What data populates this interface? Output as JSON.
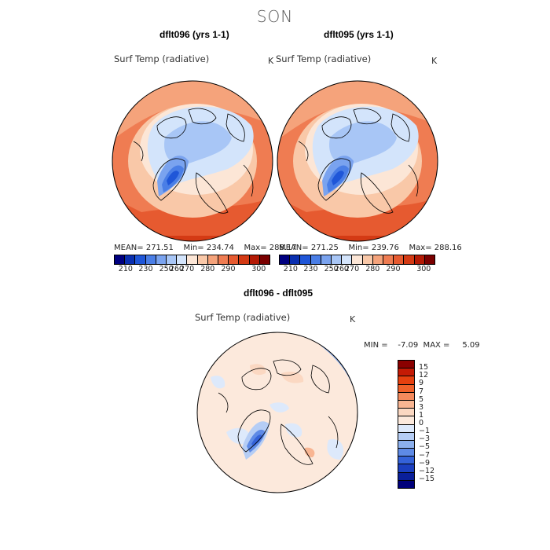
{
  "page_title": "SON",
  "panels": [
    {
      "title": "dflt096 (yrs 1-1)",
      "variable": "Surf Temp (radiative)",
      "unit": "K",
      "stats": "MEAN= 271.51    Min= 234.74    Max= 288.17",
      "colorbar_ticks": [
        "210",
        "230",
        "250",
        "260",
        "270",
        "280",
        "290",
        "300"
      ]
    },
    {
      "title": "dflt095 (yrs 1-1)",
      "variable": "Surf Temp (radiative)",
      "unit": "K",
      "stats": "MEAN= 271.25    Min= 239.76    Max= 288.16",
      "colorbar_ticks": [
        "210",
        "230",
        "250",
        "260",
        "270",
        "280",
        "290",
        "300"
      ]
    }
  ],
  "diff_panel": {
    "title": "dflt096 - dflt095",
    "variable": "Surf Temp (radiative)",
    "unit": "K",
    "stats": "MIN =    -7.09  MAX =     5.09",
    "colorbar_ticks": [
      "15",
      "12",
      "9",
      "7",
      "5",
      "3",
      "1",
      "0",
      "−1",
      "−3",
      "−5",
      "−7",
      "−9",
      "−12",
      "−15"
    ]
  },
  "colors": {
    "abs_scale": [
      "#000080",
      "#0a2fb0",
      "#1f56d8",
      "#4a7ee6",
      "#7aa3ef",
      "#a8c6f6",
      "#d3e4fb",
      "#fce6d6",
      "#f9c8a8",
      "#f5a37b",
      "#ef7c52",
      "#e65a30",
      "#d43a14",
      "#b41a05",
      "#7a0000"
    ],
    "diff_scale": [
      "#8a0000",
      "#c41a05",
      "#e6400f",
      "#f0612a",
      "#f58a5c",
      "#f8b592",
      "#fbd8c2",
      "#fce9dc",
      "#dde9fb",
      "#b5cdf5",
      "#8cb0ee",
      "#5e8ae6",
      "#3462d9",
      "#1b3fbf",
      "#0a1f9a",
      "#00007a"
    ]
  }
}
